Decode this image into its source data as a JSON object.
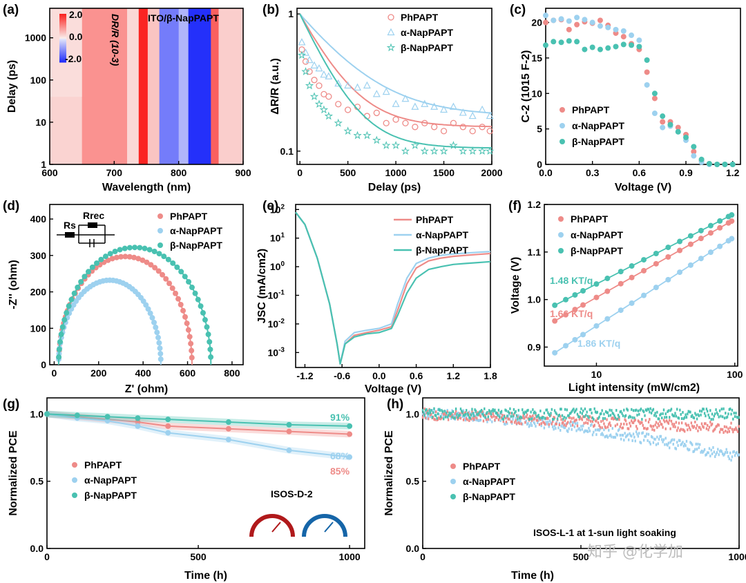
{
  "colors": {
    "red": "#ee8b88",
    "blue": "#9dd1ef",
    "teal": "#49c1b1",
    "axis": "#000000"
  },
  "watermark": "知乎 @化学加",
  "chart_data": [
    {
      "panel": "(a)",
      "type": "heatmap",
      "annotation": "ITO/β-NapPAPT",
      "xlabel": "Wavelength (nm)",
      "ylabel": "Delay (ps)",
      "xlim": [
        600,
        900
      ],
      "ylim": [
        1,
        5000
      ],
      "yscale": "log",
      "xticks": [
        "600",
        "700",
        "800",
        "900"
      ],
      "yticks": [
        "1",
        "10",
        "100",
        "1000"
      ],
      "colorbar": {
        "label": "DR/R (10-3)",
        "ticks": [
          "2.0",
          "0.0",
          "-2.0"
        ]
      },
      "bands": [
        {
          "from": 600,
          "to": 650,
          "value": 0.25
        },
        {
          "from": 650,
          "to": 720,
          "value": 0.9
        },
        {
          "from": 720,
          "to": 738,
          "value": 0.2
        },
        {
          "from": 738,
          "to": 752,
          "value": 2.0
        },
        {
          "from": 752,
          "to": 770,
          "value": 0.4
        },
        {
          "from": 770,
          "to": 800,
          "value": -1.2
        },
        {
          "from": 800,
          "to": 815,
          "value": -0.6
        },
        {
          "from": 815,
          "to": 850,
          "value": -2.0
        },
        {
          "from": 850,
          "to": 862,
          "value": 1.4
        },
        {
          "from": 862,
          "to": 900,
          "value": 0.3
        }
      ]
    },
    {
      "panel": "(b)",
      "type": "scatter",
      "xlabel": "Delay (ps)",
      "ylabel": "ΔR/R (a.u.)",
      "xlim": [
        -30,
        2000
      ],
      "ylim": [
        0.08,
        1.1
      ],
      "yscale": "log",
      "xticks": [
        "0",
        "500",
        "1000",
        "1500",
        "2000"
      ],
      "yticks": [
        "0.1",
        "1"
      ],
      "series": [
        {
          "name": "PhPAPT",
          "marker": "circle",
          "color": "#ee8b88",
          "plateau": 0.15,
          "tau": 300,
          "x": [
            20,
            60,
            100,
            150,
            200,
            250,
            300,
            400,
            500,
            600,
            700,
            800,
            900,
            1000,
            1100,
            1200,
            1300,
            1400,
            1500,
            1600,
            1700,
            1800,
            1900,
            1980
          ],
          "y": [
            0.55,
            0.45,
            0.38,
            0.33,
            0.3,
            0.26,
            0.25,
            0.22,
            0.2,
            0.21,
            0.18,
            0.19,
            0.16,
            0.17,
            0.16,
            0.15,
            0.16,
            0.15,
            0.14,
            0.16,
            0.15,
            0.14,
            0.15,
            0.14
          ]
        },
        {
          "name": "α-NapPAPT",
          "marker": "triangle",
          "color": "#9dd1ef",
          "plateau": 0.18,
          "tau": 450,
          "x": [
            20,
            60,
            100,
            150,
            200,
            250,
            300,
            400,
            500,
            600,
            700,
            800,
            900,
            1000,
            1100,
            1200,
            1300,
            1400,
            1500,
            1600,
            1700,
            1800,
            1900,
            1980
          ],
          "y": [
            0.62,
            0.52,
            0.46,
            0.42,
            0.4,
            0.36,
            0.35,
            0.31,
            0.3,
            0.29,
            0.3,
            0.26,
            0.27,
            0.22,
            0.24,
            0.21,
            0.22,
            0.21,
            0.2,
            0.21,
            0.19,
            0.18,
            0.2,
            0.18
          ]
        },
        {
          "name": "β-NapPAPT",
          "marker": "star",
          "color": "#49c1b1",
          "plateau": 0.105,
          "tau": 270,
          "x": [
            20,
            60,
            100,
            150,
            200,
            250,
            300,
            400,
            500,
            600,
            700,
            800,
            900,
            1000,
            1100,
            1200,
            1300,
            1400,
            1500,
            1600,
            1700,
            1800,
            1900,
            1980
          ],
          "y": [
            0.5,
            0.38,
            0.3,
            0.25,
            0.22,
            0.2,
            0.18,
            0.16,
            0.14,
            0.13,
            0.13,
            0.12,
            0.11,
            0.11,
            0.1,
            0.11,
            0.1,
            0.1,
            0.1,
            0.11,
            0.1,
            0.1,
            0.1,
            0.1
          ]
        }
      ]
    },
    {
      "panel": "(c)",
      "type": "scatter",
      "xlabel": "Voltage (V)",
      "ylabel": "C-2 (1015 F-2)",
      "xlim": [
        0,
        1.25
      ],
      "ylim": [
        0,
        22
      ],
      "xticks": [
        "0.0",
        "0.3",
        "0.6",
        "0.9",
        "1.2"
      ],
      "yticks": [
        "0",
        "5",
        "10",
        "15",
        "20"
      ],
      "series": [
        {
          "name": "PhPAPT",
          "color": "#ee8b88",
          "x": [
            0.0,
            0.05,
            0.1,
            0.15,
            0.2,
            0.25,
            0.3,
            0.35,
            0.4,
            0.45,
            0.5,
            0.55,
            0.6,
            0.65,
            0.7,
            0.75,
            0.8,
            0.85,
            0.9,
            0.95,
            1.0,
            1.05,
            1.1,
            1.15,
            1.2
          ],
          "y": [
            20,
            20.3,
            20.4,
            19,
            19.7,
            20.1,
            19.9,
            20.3,
            19.6,
            18.5,
            18,
            17,
            16.2,
            13,
            9.3,
            6,
            6,
            5.2,
            4.2,
            1.8,
            0.5,
            0.1,
            0,
            0,
            0
          ]
        },
        {
          "name": "α-NapPAPT",
          "color": "#9dd1ef",
          "x": [
            0.0,
            0.05,
            0.1,
            0.15,
            0.2,
            0.25,
            0.3,
            0.35,
            0.4,
            0.45,
            0.5,
            0.55,
            0.6,
            0.65,
            0.7,
            0.75,
            0.8,
            0.85,
            0.9,
            0.95,
            1.0,
            1.05,
            1.1,
            1.15,
            1.2
          ],
          "y": [
            21,
            20.3,
            20.5,
            20.2,
            20.7,
            20.4,
            20,
            19.5,
            19.3,
            19,
            18.8,
            18.2,
            17.5,
            11.2,
            7.2,
            5.2,
            5.4,
            4.6,
            3.4,
            1.2,
            0.3,
            0,
            0,
            0,
            0
          ]
        },
        {
          "name": "β-NapPAPT",
          "color": "#49c1b1",
          "x": [
            0.0,
            0.05,
            0.1,
            0.15,
            0.2,
            0.25,
            0.3,
            0.35,
            0.4,
            0.45,
            0.5,
            0.55,
            0.6,
            0.65,
            0.7,
            0.75,
            0.8,
            0.85,
            0.9,
            0.95,
            1.0,
            1.05,
            1.1,
            1.15,
            1.2
          ],
          "y": [
            16.8,
            17.3,
            17.2,
            17.4,
            17.3,
            16.2,
            16.5,
            16.2,
            16.4,
            16.6,
            16.9,
            16.8,
            16.6,
            14.7,
            10,
            6.8,
            5.6,
            4.6,
            3.8,
            2.5,
            0.7,
            0.1,
            0,
            0,
            0
          ]
        }
      ]
    },
    {
      "panel": "(d)",
      "type": "scatter",
      "xlabel": "Z' (ohm)",
      "ylabel": "-Z'' (ohm)",
      "xlim": [
        -20,
        850
      ],
      "ylim": [
        0,
        440
      ],
      "xticks": [
        "0",
        "200",
        "400",
        "600",
        "800"
      ],
      "yticks": [
        "0",
        "100",
        "200",
        "300",
        "400"
      ],
      "circuit": {
        "rs": "Rs",
        "rrec": "Rrec"
      },
      "series": [
        {
          "name": "PhPAPT",
          "color": "#ee8b88",
          "r0": 20,
          "r1": 620,
          "peak": 297
        },
        {
          "name": "α-NapPAPT",
          "color": "#9dd1ef",
          "r0": 20,
          "r1": 480,
          "peak": 232
        },
        {
          "name": "β-NapPAPT",
          "color": "#49c1b1",
          "r0": 20,
          "r1": 705,
          "peak": 322
        }
      ]
    },
    {
      "panel": "(e)",
      "type": "line",
      "xlabel": "Voltage (V)",
      "ylabel": "JSC (mA/cm2)",
      "xlim": [
        -1.35,
        1.8
      ],
      "ylim": [
        0.0003,
        150
      ],
      "yscale": "log",
      "xticks": [
        "-1.2",
        "-0.6",
        "0.0",
        "0.6",
        "1.2",
        "1.8"
      ],
      "yticks": [
        "10-3",
        "10-2",
        "10-1",
        "100",
        "101",
        "102"
      ],
      "series": [
        {
          "name": "PhPAPT",
          "color": "#ee8b88",
          "x": [
            -1.35,
            -1.2,
            -1.0,
            -0.8,
            -0.68,
            -0.63,
            -0.55,
            -0.4,
            -0.2,
            0.0,
            0.2,
            0.3,
            0.45,
            0.6,
            0.8,
            1.0,
            1.2,
            1.4,
            1.6,
            1.8
          ],
          "y": [
            80,
            30,
            2,
            0.05,
            0.002,
            0.0004,
            0.002,
            0.004,
            0.005,
            0.006,
            0.008,
            0.03,
            0.25,
            0.9,
            1.6,
            2.0,
            2.3,
            2.5,
            2.7,
            2.9
          ]
        },
        {
          "name": "α-NapPAPT",
          "color": "#9dd1ef",
          "x": [
            -1.35,
            -1.2,
            -1.0,
            -0.8,
            -0.68,
            -0.63,
            -0.55,
            -0.4,
            -0.2,
            0.0,
            0.2,
            0.3,
            0.45,
            0.6,
            0.8,
            1.0,
            1.2,
            1.4,
            1.6,
            1.8
          ],
          "y": [
            80,
            30,
            2,
            0.05,
            0.002,
            0.0004,
            0.0025,
            0.005,
            0.006,
            0.007,
            0.01,
            0.05,
            0.4,
            1.3,
            2.0,
            2.5,
            2.8,
            3.0,
            3.2,
            3.4
          ]
        },
        {
          "name": "β-NapPAPT",
          "color": "#49c1b1",
          "x": [
            -1.35,
            -1.2,
            -1.0,
            -0.8,
            -0.68,
            -0.63,
            -0.55,
            -0.4,
            -0.2,
            0.0,
            0.2,
            0.3,
            0.45,
            0.6,
            0.8,
            1.0,
            1.2,
            1.4,
            1.6,
            1.8
          ],
          "y": [
            80,
            30,
            2,
            0.05,
            0.002,
            0.0004,
            0.002,
            0.0035,
            0.0045,
            0.005,
            0.007,
            0.02,
            0.12,
            0.4,
            0.8,
            1.0,
            1.2,
            1.3,
            1.4,
            1.5
          ]
        }
      ]
    },
    {
      "panel": "(f)",
      "type": "scatter",
      "xlabel": "Light intensity (mW/cm2)",
      "ylabel": "Voltage (V)",
      "xlim": [
        4.2,
        105
      ],
      "ylim": [
        0.86,
        1.2
      ],
      "xscale": "log",
      "xticks": [
        "10",
        "100"
      ],
      "yticks": [
        "0.9",
        "1.0",
        "1.1",
        "1.2"
      ],
      "series": [
        {
          "name": "PhPAPT",
          "color": "#ee8b88",
          "slope_label": "1.66 KT/q",
          "v_start": 0.955,
          "v_end": 1.165
        },
        {
          "name": "α-NapPAPT",
          "color": "#9dd1ef",
          "slope_label": "1.86 KT/q",
          "v_start": 0.888,
          "v_end": 1.128
        },
        {
          "name": "β-NapPAPT",
          "color": "#49c1b1",
          "slope_label": "1.48 KT/q",
          "v_start": 0.988,
          "v_end": 1.178
        }
      ],
      "x_points": [
        5,
        6,
        7,
        8,
        10,
        12,
        15,
        18,
        22,
        27,
        33,
        40,
        48,
        57,
        67,
        78,
        90,
        95
      ]
    },
    {
      "panel": "(g)",
      "type": "line",
      "xlabel": "Time (h)",
      "ylabel": "Normalized PCE",
      "xlim": [
        0,
        1050
      ],
      "ylim": [
        0,
        1.12
      ],
      "xticks": [
        "0",
        "500",
        "1000"
      ],
      "yticks": [
        "0.0",
        "0.5",
        "1.0"
      ],
      "condition": "ISOS-D-2",
      "series": [
        {
          "name": "PhPAPT",
          "color": "#ee8b88",
          "final_label": "85%",
          "x": [
            0,
            100,
            200,
            300,
            400,
            600,
            800,
            1000
          ],
          "y": [
            1.0,
            0.98,
            0.96,
            0.94,
            0.91,
            0.89,
            0.87,
            0.85
          ]
        },
        {
          "name": "α-NapPAPT",
          "color": "#9dd1ef",
          "final_label": "68%",
          "x": [
            0,
            100,
            200,
            300,
            400,
            600,
            800,
            1000
          ],
          "y": [
            1.0,
            0.97,
            0.95,
            0.91,
            0.86,
            0.81,
            0.73,
            0.68
          ]
        },
        {
          "name": "β-NapPAPT",
          "color": "#49c1b1",
          "final_label": "91%",
          "x": [
            0,
            100,
            200,
            300,
            400,
            600,
            800,
            1000
          ],
          "y": [
            1.0,
            0.99,
            0.98,
            0.97,
            0.96,
            0.94,
            0.92,
            0.91
          ]
        }
      ]
    },
    {
      "panel": "(h)",
      "type": "scatter",
      "xlabel": "Time (h)",
      "ylabel": "Normalized PCE",
      "xlim": [
        0,
        1000
      ],
      "ylim": [
        0,
        1.12
      ],
      "xticks": [
        "0",
        "500",
        "1000"
      ],
      "yticks": [
        "0.0",
        "0.5",
        "1.0"
      ],
      "condition": "ISOS-L-1 at 1-sun light soaking",
      "series": [
        {
          "name": "PhPAPT",
          "color": "#ee8b88",
          "start": 1.0,
          "end": 0.89
        },
        {
          "name": "α-NapPAPT",
          "color": "#9dd1ef",
          "start": 1.0,
          "end": 0.68
        },
        {
          "name": "β-NapPAPT",
          "color": "#49c1b1",
          "start": 1.0,
          "end": 1.0
        }
      ]
    }
  ]
}
